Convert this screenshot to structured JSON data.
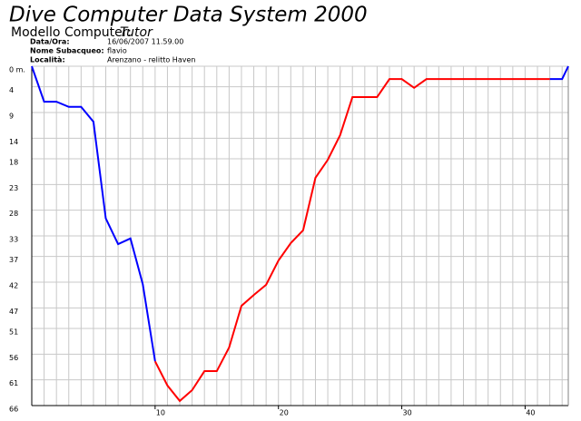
{
  "header": {
    "title": "Dive Computer Data System 2000",
    "model_label": "Modello Computer:",
    "model": "Tutor",
    "info": [
      [
        "Data/Ora:",
        "16/06/2007 11.59.00"
      ],
      [
        "Nome Subacqueo:",
        "flavio"
      ],
      [
        "Località:",
        "Arenzano - relitto Haven"
      ]
    ]
  },
  "chart_data": {
    "type": "line",
    "x": [
      0,
      1,
      2,
      3,
      4,
      5,
      6,
      7,
      8,
      9,
      10,
      11,
      12,
      13,
      14,
      15,
      16,
      17,
      18,
      19,
      20,
      21,
      22,
      23,
      24,
      25,
      26,
      27,
      28,
      29,
      30,
      31,
      32,
      33,
      34,
      35,
      36,
      37,
      38,
      39,
      40,
      41,
      42,
      43,
      43.5
    ],
    "series": [
      {
        "color": "#0000ff",
        "values": [
          0,
          6.9,
          6.9,
          7.9,
          7.9,
          10.8,
          29.6,
          34.6,
          33.5,
          42.4,
          57.4,
          null,
          null,
          null,
          null,
          null,
          null,
          null,
          null,
          null,
          null,
          null,
          null,
          null,
          null,
          null,
          null,
          null,
          null,
          null,
          null,
          null,
          null,
          null,
          null,
          null,
          null,
          null,
          null,
          null,
          null,
          null,
          2.5,
          2.5,
          0
        ]
      },
      {
        "color": "#ff0000",
        "values": [
          null,
          null,
          null,
          null,
          null,
          null,
          null,
          null,
          null,
          null,
          57.4,
          62.1,
          65.1,
          63,
          59.3,
          59.3,
          54.7,
          46.6,
          44.5,
          42.5,
          37.8,
          34.4,
          31.9,
          21.7,
          18.2,
          13.4,
          6,
          6,
          6,
          2.5,
          2.5,
          4.2,
          2.5,
          2.5,
          2.5,
          2.5,
          2.5,
          2.5,
          2.5,
          2.5,
          2.5,
          2.5,
          2.5,
          null,
          null
        ]
      }
    ],
    "xlim": [
      0,
      43.5
    ],
    "xticks": [
      10,
      20,
      30,
      40
    ],
    "x_grid_step": 1,
    "ylim": [
      0,
      66
    ],
    "yticks": [
      {
        "value": 0,
        "label": "0 m."
      },
      4,
      9,
      14,
      18,
      23,
      28,
      33,
      37,
      42,
      47,
      51,
      56,
      61,
      66
    ],
    "y_inverted": true,
    "grid": true
  }
}
